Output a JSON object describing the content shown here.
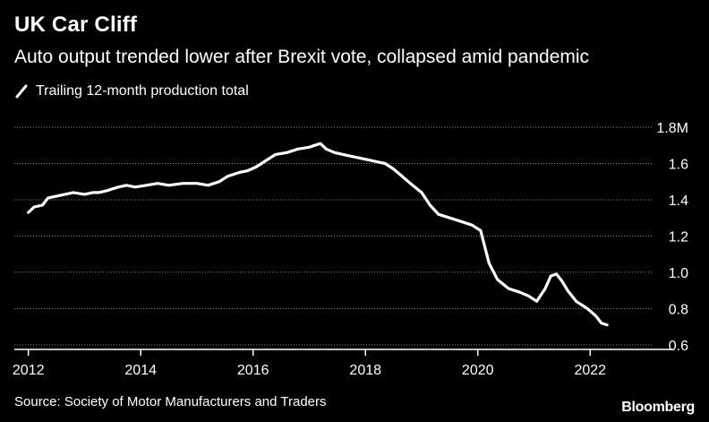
{
  "header": {
    "title": "UK Car Cliff",
    "subtitle": "Auto output trended lower after Brexit vote, collapsed amid pandemic"
  },
  "footer": {
    "source": "Source: Society of Motor Manufacturers and Traders",
    "brand": "Bloomberg"
  },
  "colors": {
    "background": "#000000",
    "line": "#ffffff",
    "grid": "#8c8c8c",
    "axis": "#ffffff"
  },
  "chart_data": {
    "type": "line",
    "title": "UK Car Cliff",
    "subtitle": "Auto output trended lower after Brexit vote, collapsed amid pandemic",
    "xlabel": "",
    "ylabel": "",
    "xlim": [
      2011.75,
      2023.0
    ],
    "ylim": [
      0.55,
      1.8
    ],
    "grid": true,
    "legend_position": "top-left",
    "x_ticks": [
      {
        "value": 2012,
        "label": "2012"
      },
      {
        "value": 2014,
        "label": "2014"
      },
      {
        "value": 2016,
        "label": "2016"
      },
      {
        "value": 2018,
        "label": "2018"
      },
      {
        "value": 2020,
        "label": "2020"
      },
      {
        "value": 2022,
        "label": "2022"
      }
    ],
    "y_ticks": [
      {
        "value": 1.8,
        "label": "1.8M"
      },
      {
        "value": 1.6,
        "label": "1.6"
      },
      {
        "value": 1.4,
        "label": "1.4"
      },
      {
        "value": 1.2,
        "label": "1.2"
      },
      {
        "value": 1.0,
        "label": "1.0"
      },
      {
        "value": 0.8,
        "label": "0.8"
      },
      {
        "value": 0.6,
        "label": "0.6"
      }
    ],
    "series": [
      {
        "name": "Trailing 12-month production total",
        "x": [
          2012.0,
          2012.1,
          2012.25,
          2012.35,
          2012.5,
          2012.65,
          2012.8,
          2013.0,
          2013.15,
          2013.25,
          2013.4,
          2013.6,
          2013.75,
          2013.9,
          2014.1,
          2014.3,
          2014.5,
          2014.75,
          2015.0,
          2015.2,
          2015.4,
          2015.55,
          2015.75,
          2015.9,
          2016.05,
          2016.25,
          2016.4,
          2016.6,
          2016.8,
          2017.0,
          2017.1,
          2017.2,
          2017.3,
          2017.45,
          2017.6,
          2017.75,
          2017.9,
          2018.05,
          2018.2,
          2018.35,
          2018.5,
          2018.65,
          2018.8,
          2019.0,
          2019.15,
          2019.3,
          2019.5,
          2019.7,
          2019.9,
          2020.05,
          2020.2,
          2020.35,
          2020.55,
          2020.75,
          2020.9,
          2021.05,
          2021.2,
          2021.3,
          2021.4,
          2021.5,
          2021.6,
          2021.75,
          2021.95,
          2022.1,
          2022.2,
          2022.3
        ],
        "values": [
          1.33,
          1.36,
          1.37,
          1.41,
          1.42,
          1.43,
          1.44,
          1.43,
          1.44,
          1.44,
          1.45,
          1.47,
          1.48,
          1.47,
          1.48,
          1.49,
          1.48,
          1.49,
          1.49,
          1.48,
          1.5,
          1.53,
          1.55,
          1.56,
          1.58,
          1.62,
          1.65,
          1.66,
          1.68,
          1.69,
          1.7,
          1.71,
          1.68,
          1.66,
          1.65,
          1.64,
          1.63,
          1.62,
          1.61,
          1.6,
          1.57,
          1.53,
          1.49,
          1.44,
          1.37,
          1.32,
          1.3,
          1.28,
          1.26,
          1.23,
          1.05,
          0.96,
          0.91,
          0.89,
          0.87,
          0.84,
          0.91,
          0.98,
          0.99,
          0.95,
          0.9,
          0.84,
          0.8,
          0.76,
          0.72,
          0.71
        ]
      }
    ]
  }
}
